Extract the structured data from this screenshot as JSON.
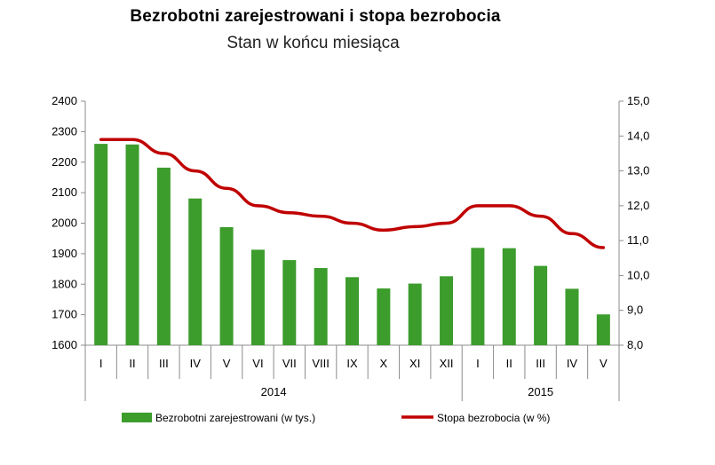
{
  "chart_data": {
    "type": "bar+line",
    "title": "Bezrobotni zarejestrowani i stopa bezrobocia",
    "subtitle": "Stan w końcu miesiąca",
    "categories": [
      "I",
      "II",
      "III",
      "IV",
      "V",
      "VI",
      "VII",
      "VIII",
      "IX",
      "X",
      "XI",
      "XII",
      "I",
      "II",
      "III",
      "IV",
      "V"
    ],
    "year_groups": [
      {
        "label": "2014",
        "count": 12
      },
      {
        "label": "2015",
        "count": 5
      }
    ],
    "series": [
      {
        "name": "Bezrobotni zarejestrowani (w tys.)",
        "type": "bar",
        "axis": "left",
        "color": "#3c9c2c",
        "values": [
          2260,
          2258,
          2182,
          2081,
          1987,
          1913,
          1879,
          1853,
          1823,
          1786,
          1802,
          1826,
          1919,
          1918,
          1860,
          1785,
          1701
        ]
      },
      {
        "name": "Stopa bezrobocia (w %)",
        "type": "line",
        "axis": "right",
        "color": "#c00000",
        "values": [
          13.9,
          13.9,
          13.5,
          13.0,
          12.5,
          12.0,
          11.8,
          11.7,
          11.5,
          11.3,
          11.4,
          11.5,
          12.0,
          12.0,
          11.7,
          11.2,
          10.8
        ]
      }
    ],
    "y_left": {
      "min": 1600,
      "max": 2400,
      "step": 100,
      "ticks": [
        "1600",
        "1700",
        "1800",
        "1900",
        "2000",
        "2100",
        "2200",
        "2300",
        "2400"
      ]
    },
    "y_right": {
      "min": 8.0,
      "max": 15.0,
      "step": 1.0,
      "ticks": [
        "8,0",
        "9,0",
        "10,0",
        "11,0",
        "12,0",
        "13,0",
        "14,0",
        "15,0"
      ]
    },
    "grid": false,
    "legend_position": "bottom"
  }
}
